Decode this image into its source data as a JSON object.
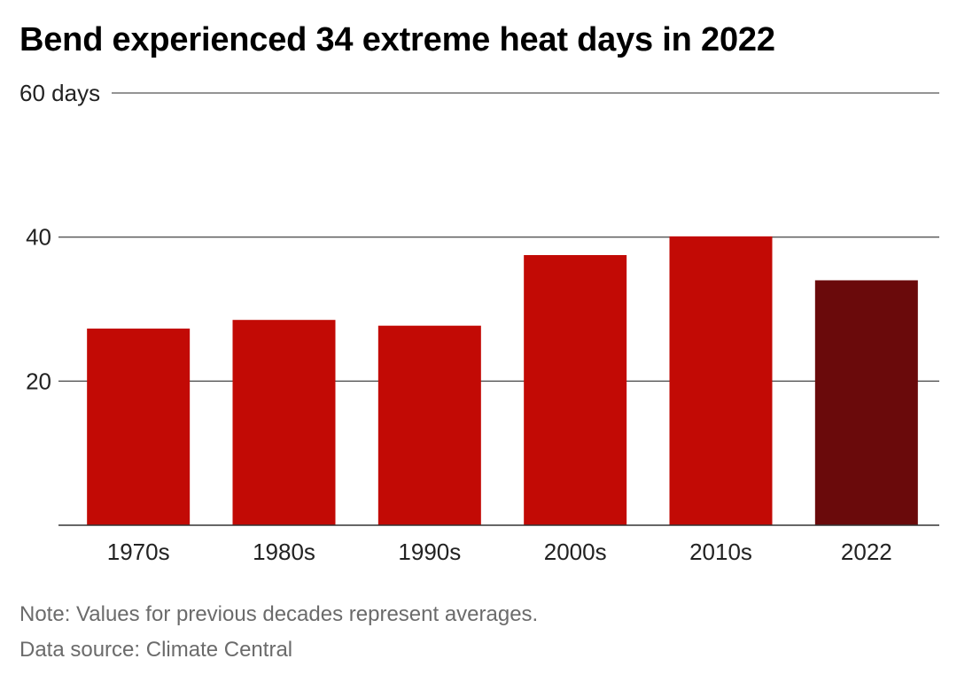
{
  "title": "Bend experienced 34 extreme heat days in 2022",
  "note": "Note: Values for previous decades represent averages.",
  "source": "Data source: Climate Central",
  "colors": {
    "bar": "#c20a05",
    "highlight": "#6a0a0b",
    "gridline": "#555555",
    "baseline": "#333333",
    "text": "#222222",
    "footer": "#6b6b6b"
  },
  "chart_data": {
    "type": "bar",
    "categories": [
      "1970s",
      "1980s",
      "1990s",
      "2000s",
      "2010s",
      "2022"
    ],
    "values": [
      27.3,
      28.5,
      27.7,
      37.5,
      40.1,
      34
    ],
    "highlight_index": 5,
    "title": "Bend experienced 34 extreme heat days in 2022",
    "xlabel": "",
    "ylabel": "",
    "ylim": [
      0,
      60
    ],
    "yticks": [
      20,
      40,
      60
    ],
    "ytick_labels": [
      "20",
      "40",
      "60 days"
    ],
    "grid": true,
    "legend": "none"
  }
}
